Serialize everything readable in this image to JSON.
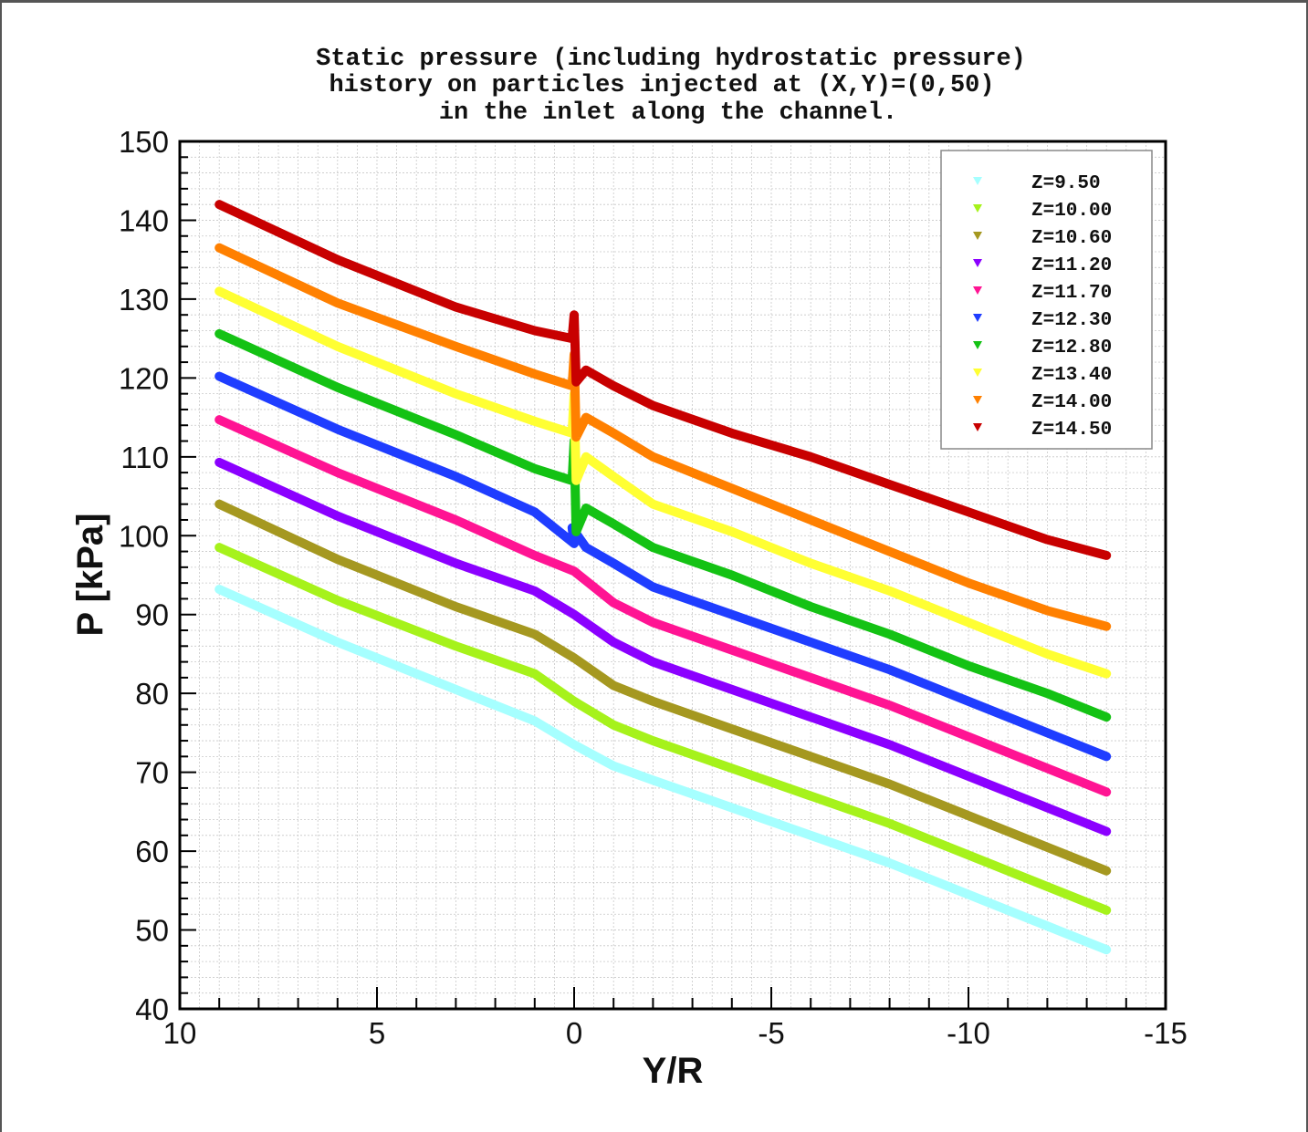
{
  "chart_data": {
    "type": "line",
    "title_lines": [
      "Static pressure (including hydrostatic pressure)",
      "history on particles injected at (X,Y)=(0,50)",
      "in the inlet along the channel."
    ],
    "xlabel": "Y/R",
    "ylabel": "P [kPa]",
    "xlim": [
      10,
      -15
    ],
    "ylim": [
      40,
      150
    ],
    "x_reversed": true,
    "x_ticks": [
      10,
      5,
      0,
      -5,
      -10,
      -15
    ],
    "x_tick_labels": [
      "10",
      "5",
      "0",
      "-5",
      "-10",
      "-15"
    ],
    "y_ticks": [
      40,
      50,
      60,
      70,
      80,
      90,
      100,
      110,
      120,
      130,
      140,
      150
    ],
    "y_tick_labels": [
      "40",
      "50",
      "60",
      "70",
      "80",
      "90",
      "100",
      "110",
      "120",
      "130",
      "140",
      "150"
    ],
    "grid": true,
    "legend_position": "top-right",
    "series": [
      {
        "name": "Z=9.50",
        "color": "#a6ffff",
        "points": [
          [
            9,
            93.2
          ],
          [
            6,
            86.5
          ],
          [
            3,
            80.5
          ],
          [
            1,
            76.5
          ],
          [
            0,
            73.5
          ],
          [
            -1,
            70.8
          ],
          [
            -2,
            69.0
          ],
          [
            -4,
            65.5
          ],
          [
            -6,
            62.0
          ],
          [
            -8,
            58.5
          ],
          [
            -10,
            54.5
          ],
          [
            -12,
            50.5
          ],
          [
            -13.5,
            47.5
          ]
        ]
      },
      {
        "name": "Z=10.00",
        "color": "#a6f21b",
        "points": [
          [
            9,
            98.5
          ],
          [
            6,
            91.8
          ],
          [
            3,
            86.0
          ],
          [
            1,
            82.5
          ],
          [
            0,
            79.0
          ],
          [
            -1,
            76.0
          ],
          [
            -2,
            74.0
          ],
          [
            -4,
            70.5
          ],
          [
            -6,
            67.0
          ],
          [
            -8,
            63.5
          ],
          [
            -10,
            59.5
          ],
          [
            -12,
            55.5
          ],
          [
            -13.5,
            52.5
          ]
        ]
      },
      {
        "name": "Z=10.60",
        "color": "#a59820",
        "points": [
          [
            9,
            104.0
          ],
          [
            6,
            97.0
          ],
          [
            3,
            91.0
          ],
          [
            1,
            87.5
          ],
          [
            0,
            84.5
          ],
          [
            -1,
            81.0
          ],
          [
            -2,
            79.0
          ],
          [
            -4,
            75.5
          ],
          [
            -6,
            72.0
          ],
          [
            -8,
            68.5
          ],
          [
            -10,
            64.5
          ],
          [
            -12,
            60.5
          ],
          [
            -13.5,
            57.5
          ]
        ]
      },
      {
        "name": "Z=11.20",
        "color": "#8b00ff",
        "points": [
          [
            9,
            109.3
          ],
          [
            6,
            102.5
          ],
          [
            3,
            96.5
          ],
          [
            1,
            93.0
          ],
          [
            0,
            90.0
          ],
          [
            -1,
            86.5
          ],
          [
            -2,
            84.0
          ],
          [
            -4,
            80.5
          ],
          [
            -6,
            77.0
          ],
          [
            -8,
            73.5
          ],
          [
            -10,
            69.5
          ],
          [
            -12,
            65.5
          ],
          [
            -13.5,
            62.5
          ]
        ]
      },
      {
        "name": "Z=11.70",
        "color": "#ff1493",
        "points": [
          [
            9,
            114.7
          ],
          [
            6,
            108.0
          ],
          [
            3,
            102.0
          ],
          [
            1,
            97.5
          ],
          [
            0,
            95.5
          ],
          [
            -1,
            91.5
          ],
          [
            -2,
            89.0
          ],
          [
            -4,
            85.5
          ],
          [
            -6,
            82.0
          ],
          [
            -8,
            78.5
          ],
          [
            -10,
            74.5
          ],
          [
            -12,
            70.5
          ],
          [
            -13.5,
            67.5
          ]
        ]
      },
      {
        "name": "Z=12.30",
        "color": "#1f3dff",
        "points": [
          [
            9,
            120.2
          ],
          [
            6,
            113.5
          ],
          [
            3,
            107.5
          ],
          [
            1,
            103.0
          ],
          [
            0,
            99.0
          ],
          [
            0.05,
            101.0
          ],
          [
            -0.3,
            98.5
          ],
          [
            -1,
            96.5
          ],
          [
            -2,
            93.5
          ],
          [
            -4,
            90.0
          ],
          [
            -6,
            86.5
          ],
          [
            -8,
            83.0
          ],
          [
            -10,
            79.0
          ],
          [
            -12,
            75.0
          ],
          [
            -13.5,
            72.0
          ]
        ]
      },
      {
        "name": "Z=12.80",
        "color": "#14c214",
        "points": [
          [
            9,
            125.6
          ],
          [
            6,
            118.8
          ],
          [
            3,
            112.8
          ],
          [
            1,
            108.5
          ],
          [
            0.05,
            107.0
          ],
          [
            0,
            112.0
          ],
          [
            -0.05,
            100.5
          ],
          [
            -0.3,
            103.5
          ],
          [
            -1,
            101.5
          ],
          [
            -2,
            98.5
          ],
          [
            -4,
            95.0
          ],
          [
            -6,
            91.0
          ],
          [
            -8,
            87.5
          ],
          [
            -10,
            83.5
          ],
          [
            -12,
            80.0
          ],
          [
            -13.5,
            77.0
          ]
        ]
      },
      {
        "name": "Z=13.40",
        "color": "#ffff33",
        "points": [
          [
            9,
            131.0
          ],
          [
            6,
            124.0
          ],
          [
            3,
            118.0
          ],
          [
            1,
            114.5
          ],
          [
            0.05,
            113.0
          ],
          [
            0,
            118.0
          ],
          [
            -0.05,
            107.0
          ],
          [
            -0.3,
            110.0
          ],
          [
            -1,
            107.5
          ],
          [
            -2,
            104.0
          ],
          [
            -4,
            100.5
          ],
          [
            -6,
            96.5
          ],
          [
            -8,
            93.0
          ],
          [
            -10,
            89.0
          ],
          [
            -12,
            85.0
          ],
          [
            -13.5,
            82.5
          ]
        ]
      },
      {
        "name": "Z=14.00",
        "color": "#ff8000",
        "points": [
          [
            9,
            136.5
          ],
          [
            6,
            129.5
          ],
          [
            3,
            124.0
          ],
          [
            1,
            120.5
          ],
          [
            0.05,
            119.0
          ],
          [
            0,
            123.0
          ],
          [
            -0.05,
            112.5
          ],
          [
            -0.3,
            115.0
          ],
          [
            -1,
            113.0
          ],
          [
            -2,
            110.0
          ],
          [
            -4,
            106.0
          ],
          [
            -6,
            102.0
          ],
          [
            -8,
            98.0
          ],
          [
            -10,
            94.0
          ],
          [
            -12,
            90.5
          ],
          [
            -13.5,
            88.5
          ]
        ]
      },
      {
        "name": "Z=14.50",
        "color": "#c80000",
        "points": [
          [
            9,
            142.0
          ],
          [
            6,
            135.0
          ],
          [
            3,
            129.0
          ],
          [
            1,
            126.0
          ],
          [
            0.05,
            125.0
          ],
          [
            0,
            128.0
          ],
          [
            -0.05,
            119.5
          ],
          [
            -0.3,
            121.0
          ],
          [
            -1,
            119.0
          ],
          [
            -2,
            116.5
          ],
          [
            -4,
            113.0
          ],
          [
            -6,
            110.0
          ],
          [
            -8,
            106.5
          ],
          [
            -10,
            103.0
          ],
          [
            -12,
            99.5
          ],
          [
            -13.5,
            97.5
          ]
        ]
      }
    ]
  }
}
